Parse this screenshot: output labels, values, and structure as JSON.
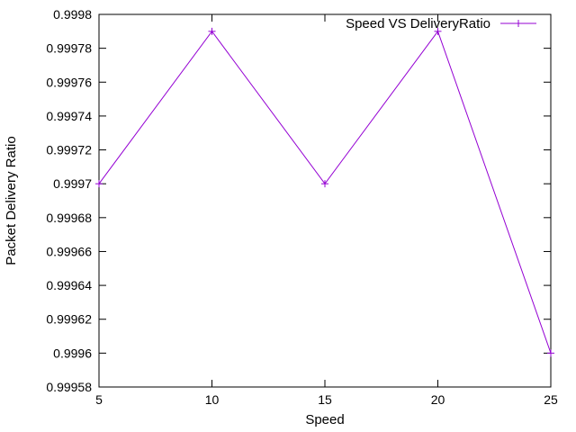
{
  "chart_data": {
    "type": "line",
    "title": "",
    "xlabel": "Speed",
    "ylabel": "Packet Delivery Ratio",
    "xlim": [
      5,
      25
    ],
    "ylim": [
      0.99958,
      0.9998
    ],
    "xticks": [
      5,
      10,
      15,
      20,
      25
    ],
    "xtick_labels": [
      "5",
      "10",
      "15",
      "20",
      "25"
    ],
    "yticks": [
      0.99958,
      0.9996,
      0.99962,
      0.99964,
      0.99966,
      0.99968,
      0.9997,
      0.99972,
      0.99974,
      0.99976,
      0.99978,
      0.9998
    ],
    "ytick_labels": [
      "0.99958",
      "0.9996",
      "0.99962",
      "0.99964",
      "0.99966",
      "0.99968",
      "0.9997",
      "0.99972",
      "0.99974",
      "0.99976",
      "0.99978",
      "0.9998"
    ],
    "grid": false,
    "legend_position": "top-right",
    "series": [
      {
        "name": "Speed VS DeliveryRatio",
        "color": "#9400d3",
        "marker": "plus",
        "x": [
          5,
          10,
          15,
          20,
          25
        ],
        "y": [
          0.9997,
          0.99979,
          0.9997,
          0.99979,
          0.9996
        ]
      }
    ]
  }
}
